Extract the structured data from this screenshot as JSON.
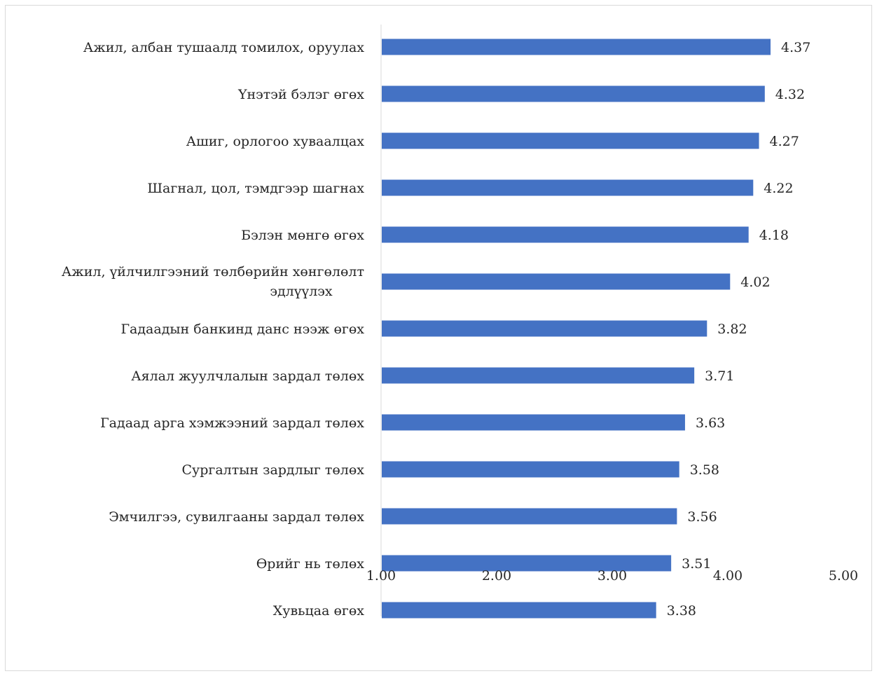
{
  "chart_data": {
    "type": "bar",
    "orientation": "horizontal",
    "title": "",
    "xlabel": "",
    "ylabel": "",
    "xlim": [
      1.0,
      5.0
    ],
    "ticks": [
      "1.00",
      "2.00",
      "3.00",
      "4.00",
      "5.00"
    ],
    "tick_values": [
      1,
      2,
      3,
      4,
      5
    ],
    "grid": false,
    "legend": "none",
    "bar_color": "#4472C4",
    "categories": [
      [
        "Ажил, албан тушаалд томилох, оруулах"
      ],
      [
        "Үнэтэй бэлэг өгөх"
      ],
      [
        "Ашиг, орлогоо хуваалцах"
      ],
      [
        "Шагнал, цол, тэмдгээр шагнах"
      ],
      [
        "Бэлэн мөнгө өгөх"
      ],
      [
        "Ажил, үйлчилгээний төлбөрийн хөнгөлөлт",
        "эдлүүлэх"
      ],
      [
        "Гадаадын банкинд данс нээж өгөх"
      ],
      [
        "Аялал жуулчлалын зардал төлөх"
      ],
      [
        "Гадаад арга хэмжээний зардал төлөх"
      ],
      [
        "Сургалтын зардлыг төлөх"
      ],
      [
        "Эмчилгээ, сувилгааны зардал төлөх"
      ],
      [
        "Өрийг нь төлөх"
      ],
      [
        "Хувьцаа өгөх"
      ]
    ],
    "values": [
      4.37,
      4.32,
      4.27,
      4.22,
      4.18,
      4.02,
      3.82,
      3.71,
      3.63,
      3.58,
      3.56,
      3.51,
      3.38
    ],
    "value_labels": [
      "4.37",
      "4.32",
      "4.27",
      "4.22",
      "4.18",
      "4.02",
      "3.82",
      "3.71",
      "3.63",
      "3.58",
      "3.56",
      "3.51",
      "3.38"
    ]
  }
}
